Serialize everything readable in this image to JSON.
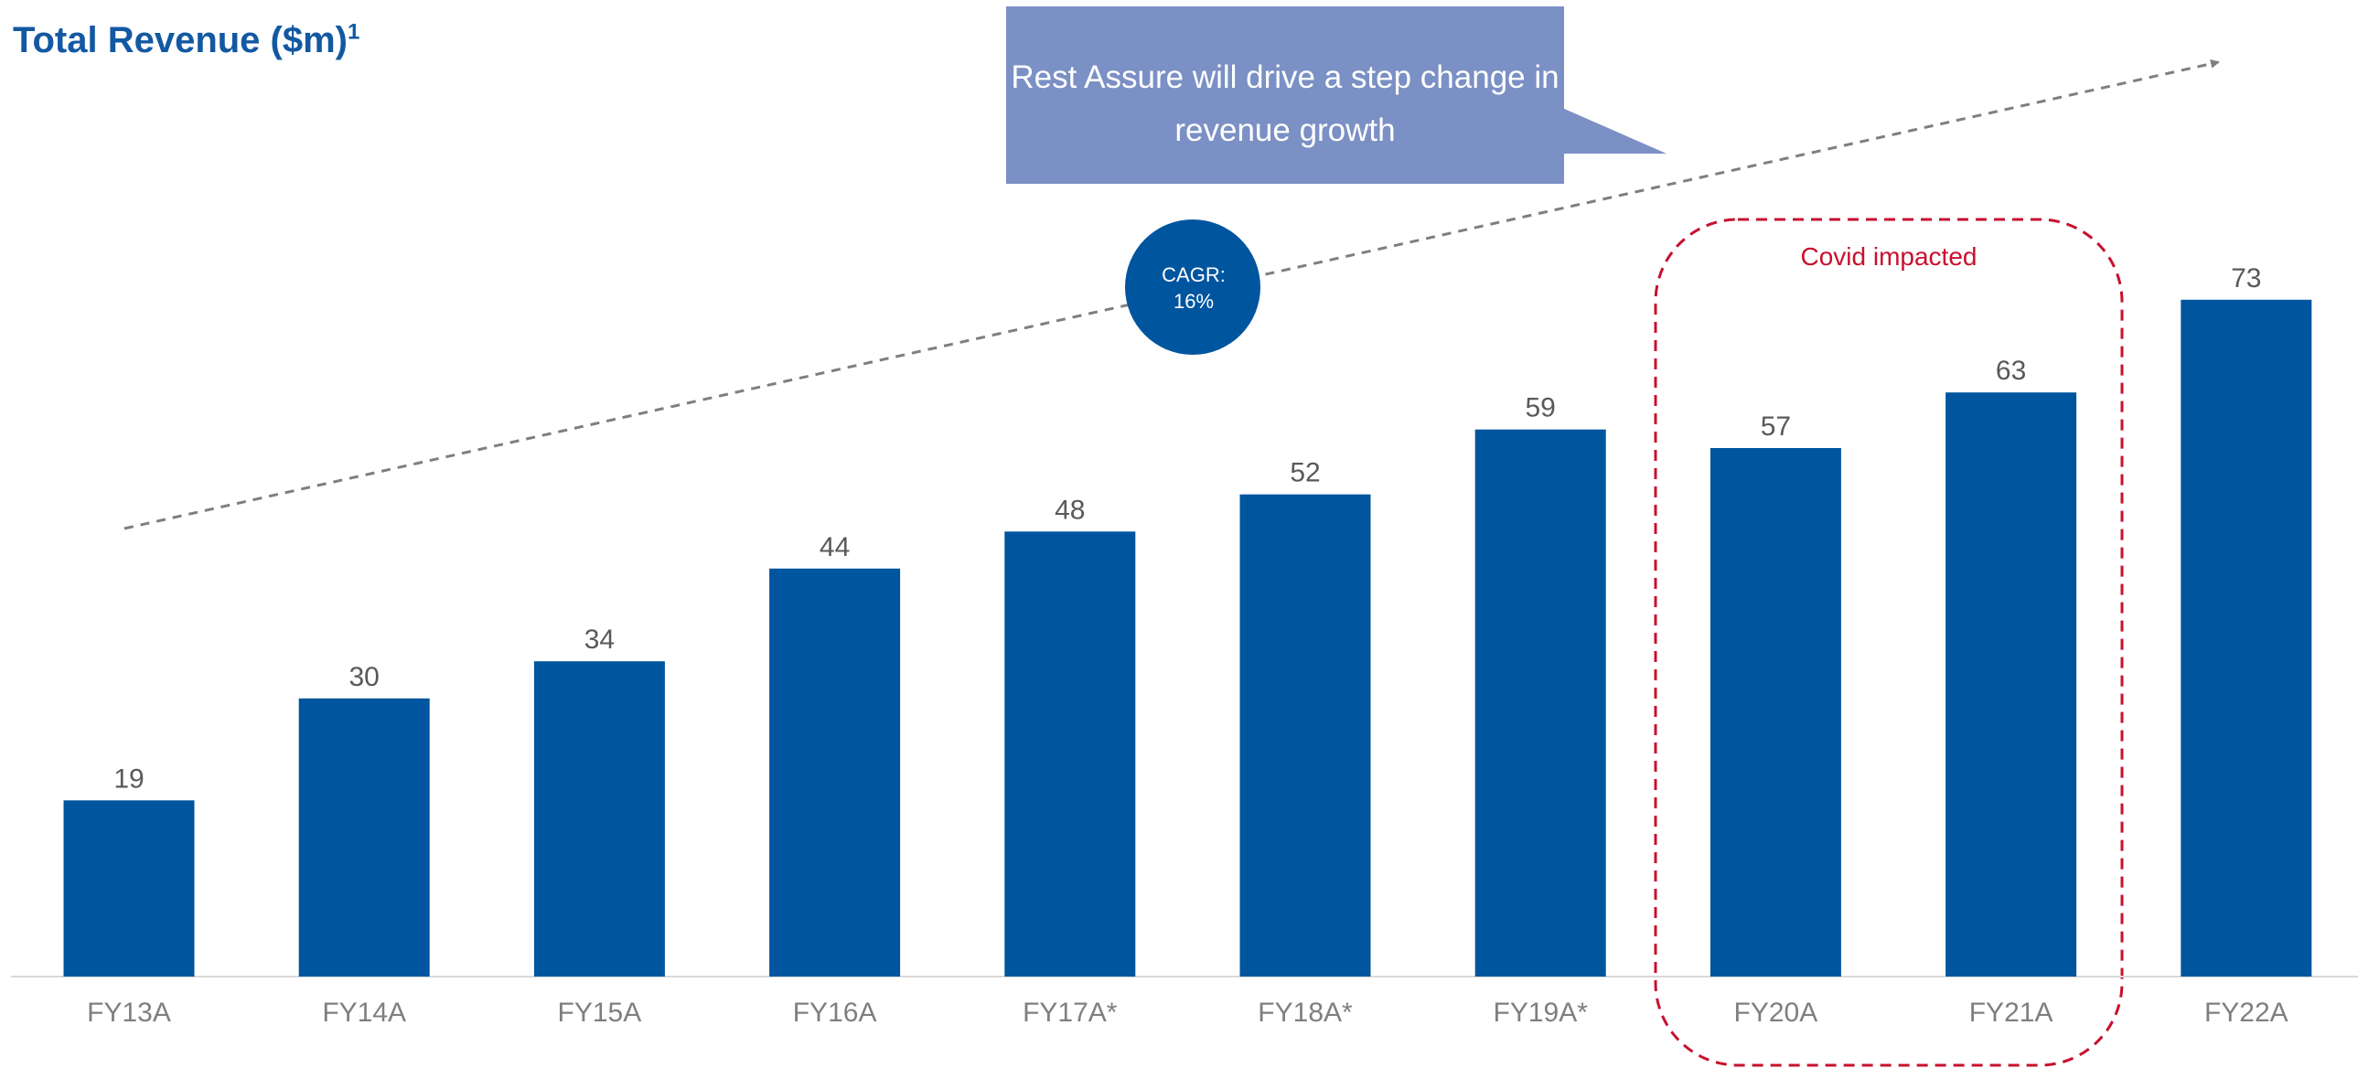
{
  "title": "Total Revenue ($m)",
  "title_footnote": "1",
  "callout_text": "Rest Assure will drive a step change in revenue growth",
  "cagr_label": "CAGR:",
  "cagr_value": "16%",
  "covid_label": "Covid impacted",
  "colors": {
    "bar": "#00559f",
    "title": "#1358a2",
    "callout": "#7b90c4",
    "cagr_circle": "#00559f",
    "covid": "#c8102e",
    "labels": "#7f7f7f",
    "trend_line": "#7f7f7f"
  },
  "chart_data": {
    "type": "bar",
    "title": "Total Revenue ($m)",
    "categories": [
      "FY13A",
      "FY14A",
      "FY15A",
      "FY16A",
      "FY17A*",
      "FY18A*",
      "FY19A*",
      "FY20A",
      "FY21A",
      "FY22A"
    ],
    "values": [
      19,
      30,
      34,
      44,
      48,
      52,
      59,
      57,
      63,
      73
    ],
    "data_labels": [
      "19",
      "30",
      "34",
      "44",
      "48",
      "52",
      "59",
      "57",
      "63",
      "73"
    ],
    "xlabel": "",
    "ylabel": "",
    "ylim": [
      0,
      78
    ],
    "grid": false,
    "legend": "none",
    "highlight_group": {
      "label": "Covid impacted",
      "categories": [
        "FY20A",
        "FY21A"
      ]
    },
    "trend_annotation": "CAGR: 16%"
  }
}
